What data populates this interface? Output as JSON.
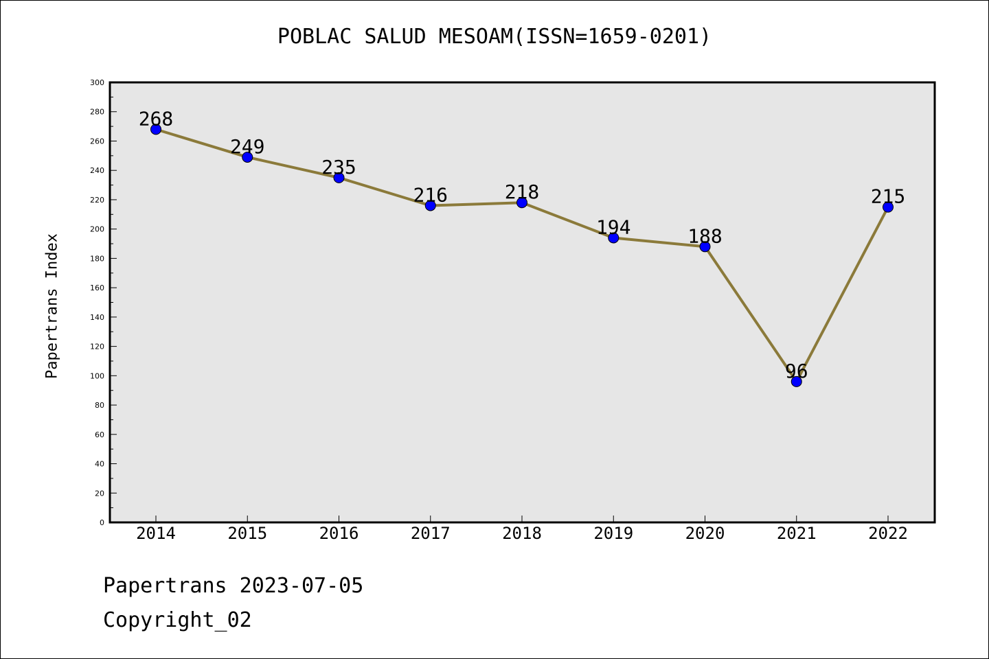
{
  "chart_data": {
    "type": "line",
    "title": "POBLAC SALUD MESOAM(ISSN=1659-0201)",
    "xlabel": "",
    "ylabel": "Papertrans Index",
    "categories": [
      "2014",
      "2015",
      "2016",
      "2017",
      "2018",
      "2019",
      "2020",
      "2021",
      "2022"
    ],
    "series": [
      {
        "values": [
          268,
          249,
          235,
          216,
          218,
          194,
          188,
          96,
          215
        ]
      }
    ],
    "data_labels": [
      "268",
      "249",
      "235",
      "216",
      "218",
      "194",
      "188",
      "96",
      "215"
    ],
    "ylim": [
      0,
      300
    ],
    "yticks": [
      "0",
      "20",
      "40",
      "60",
      "80",
      "100",
      "120",
      "140",
      "160",
      "180",
      "200",
      "220",
      "240",
      "260",
      "280",
      "300"
    ],
    "grid": false,
    "legend": "none",
    "colors": {
      "line": "#8b7a3a",
      "marker": "#0000ff",
      "plot_background": "#e6e6e6",
      "axes": "#000000"
    }
  },
  "footer": {
    "date_line": "Papertrans 2023-07-05",
    "copyright": "Copyright_02"
  }
}
